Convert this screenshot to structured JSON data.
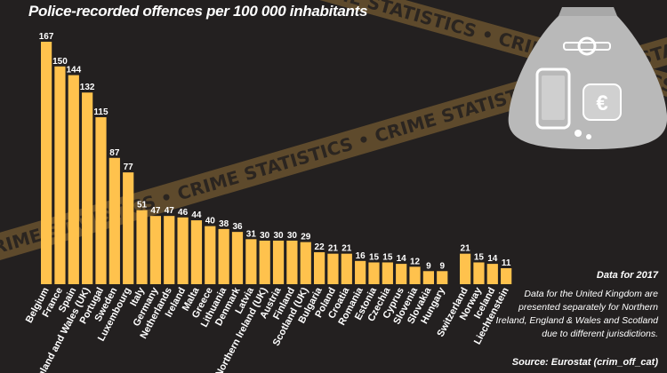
{
  "subtitle": "Police-recorded offences per 100 000 inhabitants",
  "tape_text": "• CRIME STATISTICS • CRIME STATISTICS • CRIME STATISTICS • CRIME STATISTICS •",
  "notes": {
    "year": "Data for 2017",
    "uk": "Data for the United Kingdom are presented separately for Northern Ireland, England & Wales and Scotland due to different jurisdictions.",
    "source": "Source: Eurostat (crim_off_cat)"
  },
  "colors": {
    "bar": "#ffc24d",
    "background": "#232020",
    "tape": "#5e4a2c",
    "tape_text": "#2b2520",
    "bag": "#b9b9b9"
  },
  "icons": [
    "money-bag-icon",
    "smartphone-icon",
    "wristwatch-icon",
    "euro-wallet-icon",
    "coins-icon"
  ],
  "chart_data": {
    "type": "bar",
    "title": "Police-recorded offences per 100 000 inhabitants",
    "xlabel": "",
    "ylabel": "",
    "ylim": [
      0,
      167
    ],
    "grid": false,
    "legend": "none",
    "groups": [
      {
        "categories": [
          "Belgium",
          "France",
          "Spain",
          "England and Wales (UK)",
          "Portugal",
          "Sweden",
          "Luxembourg",
          "Italy",
          "Germany",
          "Netherlands",
          "Ireland",
          "Malta",
          "Greece",
          "Lithuania",
          "Denmark",
          "Latvia",
          "Northern Ireland (UK)",
          "Austria",
          "Finland",
          "Scotland (UK)",
          "Bulgaria",
          "Poland",
          "Croatia",
          "Romania",
          "Estonia",
          "Czechia",
          "Cyprus",
          "Slovenia",
          "Slovakia",
          "Hungary"
        ],
        "values": [
          167,
          150,
          144,
          132,
          115,
          87,
          77,
          51,
          47,
          47,
          46,
          44,
          40,
          38,
          36,
          31,
          30,
          30,
          30,
          29,
          22,
          21,
          21,
          16,
          15,
          15,
          14,
          12,
          9,
          9
        ]
      },
      {
        "categories": [
          "Switzerland",
          "Norway",
          "Iceland",
          "Liechtenstein"
        ],
        "values": [
          21,
          15,
          14,
          11
        ]
      }
    ]
  }
}
